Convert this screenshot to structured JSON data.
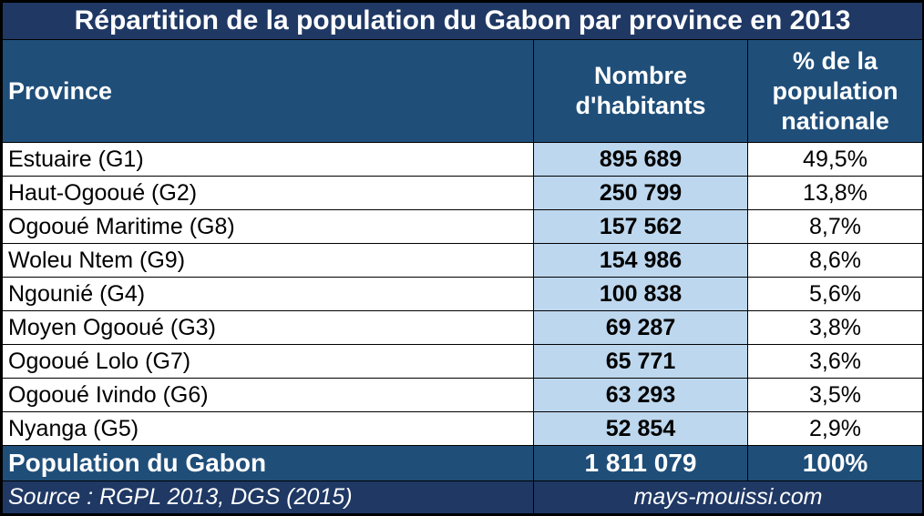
{
  "chart_data": {
    "type": "table",
    "title": "Répartition de la population du Gabon par province en 2013",
    "columns": [
      "Province",
      "Nombre d'habitants",
      "% de la population nationale"
    ],
    "rows": [
      {
        "province": "Estuaire (G1)",
        "habitants": "895 689",
        "pct": "49,5%"
      },
      {
        "province": "Haut-Ogooué (G2)",
        "habitants": "250 799",
        "pct": "13,8%"
      },
      {
        "province": "Ogooué Maritime (G8)",
        "habitants": "157 562",
        "pct": "8,7%"
      },
      {
        "province": "Woleu Ntem (G9)",
        "habitants": "154 986",
        "pct": "8,6%"
      },
      {
        "province": "Ngounié (G4)",
        "habitants": "100 838",
        "pct": "5,6%"
      },
      {
        "province": "Moyen Ogooué (G3)",
        "habitants": "69 287",
        "pct": "3,8%"
      },
      {
        "province": "Ogooué Lolo (G7)",
        "habitants": "65 771",
        "pct": "3,6%"
      },
      {
        "province": "Ogooué Ivindo (G6)",
        "habitants": "63 293",
        "pct": "3,5%"
      },
      {
        "province": "Nyanga (G5)",
        "habitants": "52 854",
        "pct": "2,9%"
      }
    ],
    "total": {
      "label": "Population du Gabon",
      "habitants": "1 811 079",
      "pct": "100%"
    },
    "source": "Source : RGPL 2013, DGS (2015)",
    "site": "mays-mouissi.com"
  },
  "colors": {
    "title_bg": "#1f3864",
    "header_bg": "#1f4e79",
    "number_column_bg": "#bdd7ee",
    "text_light": "#ffffff",
    "text_dark": "#000000"
  }
}
